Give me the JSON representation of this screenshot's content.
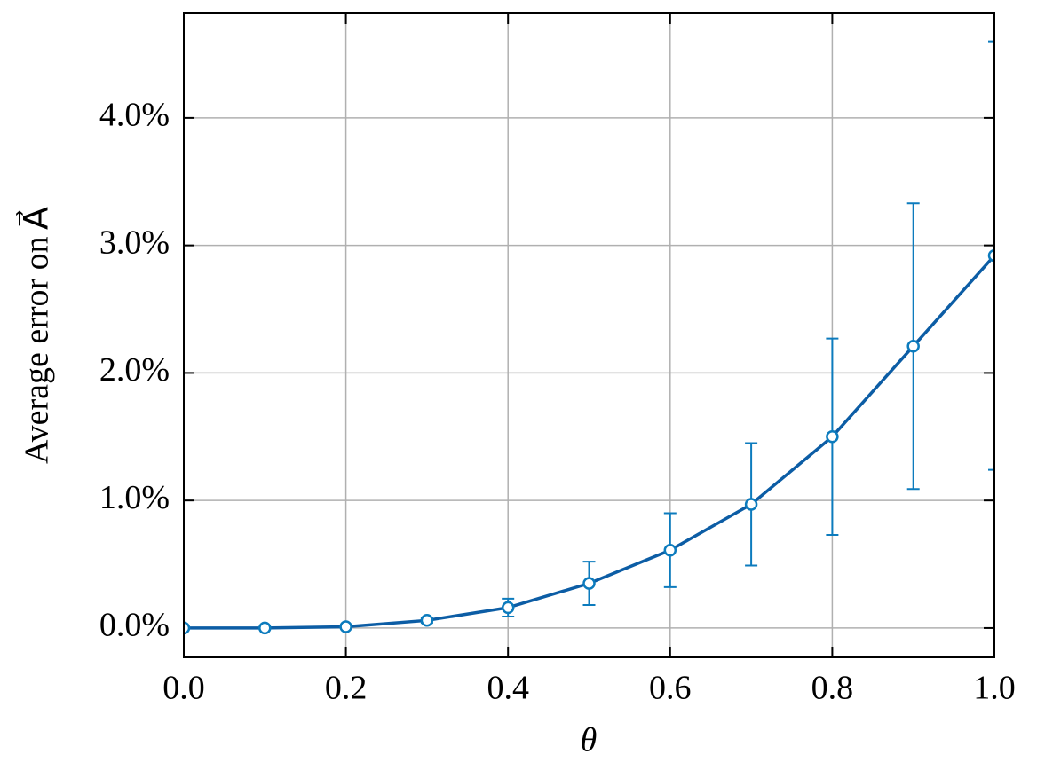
{
  "chart_data": {
    "type": "line",
    "xlabel": "θ",
    "ylabel": "Average error on A⃗",
    "x": [
      0,
      0.1,
      0.2,
      0.3,
      0.4,
      0.5,
      0.6,
      0.7,
      0.8,
      0.9,
      1.0
    ],
    "series": [
      {
        "color": "#0C5DA5",
        "error_color": "#0C7BBD",
        "values": [
          0.0,
          0.0,
          0.01,
          0.06,
          0.16,
          0.35,
          0.61,
          0.97,
          1.5,
          2.21,
          2.92
        ],
        "errors": [
          0.0,
          0.0,
          0.0,
          0.02,
          0.07,
          0.17,
          0.29,
          0.48,
          0.77,
          1.12,
          1.68
        ]
      }
    ],
    "xlim": [
      0,
      1
    ],
    "ylim": [
      -0.23,
      4.82
    ],
    "xticks": [
      {
        "value": 0,
        "label": "0.0"
      },
      0.2,
      0.4,
      0.6,
      0.8,
      {
        "value": 1,
        "label": "1.0"
      }
    ],
    "yticks": [
      {
        "value": 0,
        "label": "0.0%"
      },
      {
        "value": 1,
        "label": "1.0%"
      },
      {
        "value": 2,
        "label": "2.0%"
      },
      {
        "value": 3,
        "label": "3.0%"
      },
      {
        "value": 4,
        "label": "4.0%"
      }
    ],
    "grid": true
  }
}
